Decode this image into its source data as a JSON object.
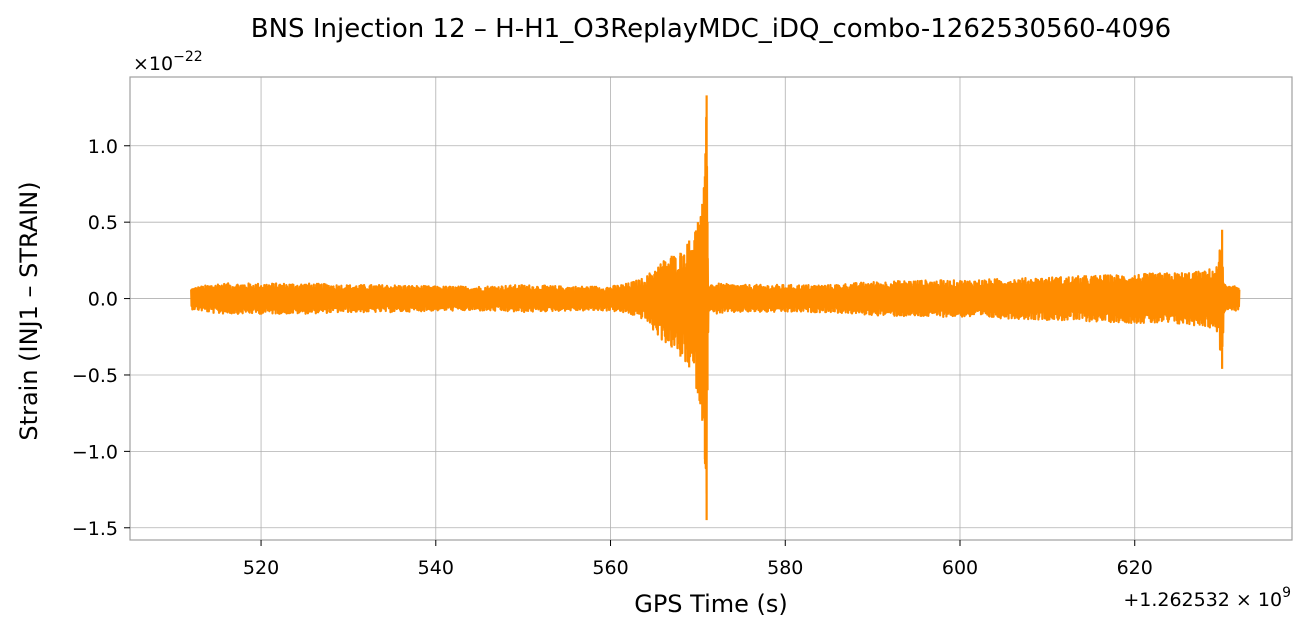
{
  "chart_data": {
    "type": "line",
    "title": "BNS Injection 12 – H-H1_O3ReplayMDC_iDQ_combo-1262530560-4096",
    "xlabel": "GPS Time (s)",
    "ylabel": "Strain (INJ1 – STRAIN)",
    "x_offset_label": "+1.262532 × 10",
    "x_offset_exponent": "9",
    "y_scale_label": "×10",
    "y_scale_exponent": "−22",
    "xlim": [
      505,
      638
    ],
    "ylim": [
      -1.58,
      1.45
    ],
    "x_ticks": [
      520,
      540,
      560,
      580,
      600,
      620
    ],
    "x_tick_labels": [
      "520",
      "540",
      "560",
      "580",
      "600",
      "620"
    ],
    "y_ticks": [
      1.0,
      0.5,
      0.0,
      -0.5,
      -1.0,
      -1.5
    ],
    "y_tick_labels": [
      "1.0",
      "0.5",
      "0.0",
      "−0.5",
      "−1.0",
      "−1.5"
    ],
    "grid": true,
    "line_color": "#ff8c00",
    "series": [
      {
        "x": [
          512,
          515,
          520,
          525,
          530,
          535,
          540,
          545,
          550,
          555,
          560,
          562,
          564,
          565,
          566,
          567,
          568,
          569,
          570,
          570.5,
          570.8,
          571.0,
          571.1,
          571.2,
          572,
          575,
          580,
          585,
          590,
          595,
          600,
          605,
          610,
          615,
          620,
          625,
          628,
          629.5,
          630.0,
          630.2,
          630.5,
          631,
          632
        ],
        "y_max": [
          0.07,
          0.1,
          0.1,
          0.1,
          0.09,
          0.09,
          0.08,
          0.08,
          0.09,
          0.08,
          0.08,
          0.1,
          0.14,
          0.2,
          0.25,
          0.28,
          0.3,
          0.38,
          0.5,
          0.62,
          0.8,
          1.33,
          0.5,
          0.1,
          0.1,
          0.09,
          0.09,
          0.09,
          0.11,
          0.12,
          0.12,
          0.13,
          0.14,
          0.15,
          0.16,
          0.17,
          0.18,
          0.22,
          0.45,
          0.1,
          0.08,
          0.08,
          0.08
        ],
        "y_min": [
          -0.07,
          -0.1,
          -0.1,
          -0.1,
          -0.09,
          -0.09,
          -0.08,
          -0.08,
          -0.09,
          -0.08,
          -0.08,
          -0.1,
          -0.14,
          -0.22,
          -0.28,
          -0.32,
          -0.38,
          -0.45,
          -0.62,
          -0.8,
          -1.05,
          -1.45,
          -0.6,
          -0.1,
          -0.1,
          -0.09,
          -0.09,
          -0.09,
          -0.11,
          -0.12,
          -0.12,
          -0.13,
          -0.14,
          -0.15,
          -0.16,
          -0.17,
          -0.18,
          -0.22,
          -0.46,
          -0.1,
          -0.08,
          -0.08,
          -0.08
        ]
      }
    ]
  }
}
